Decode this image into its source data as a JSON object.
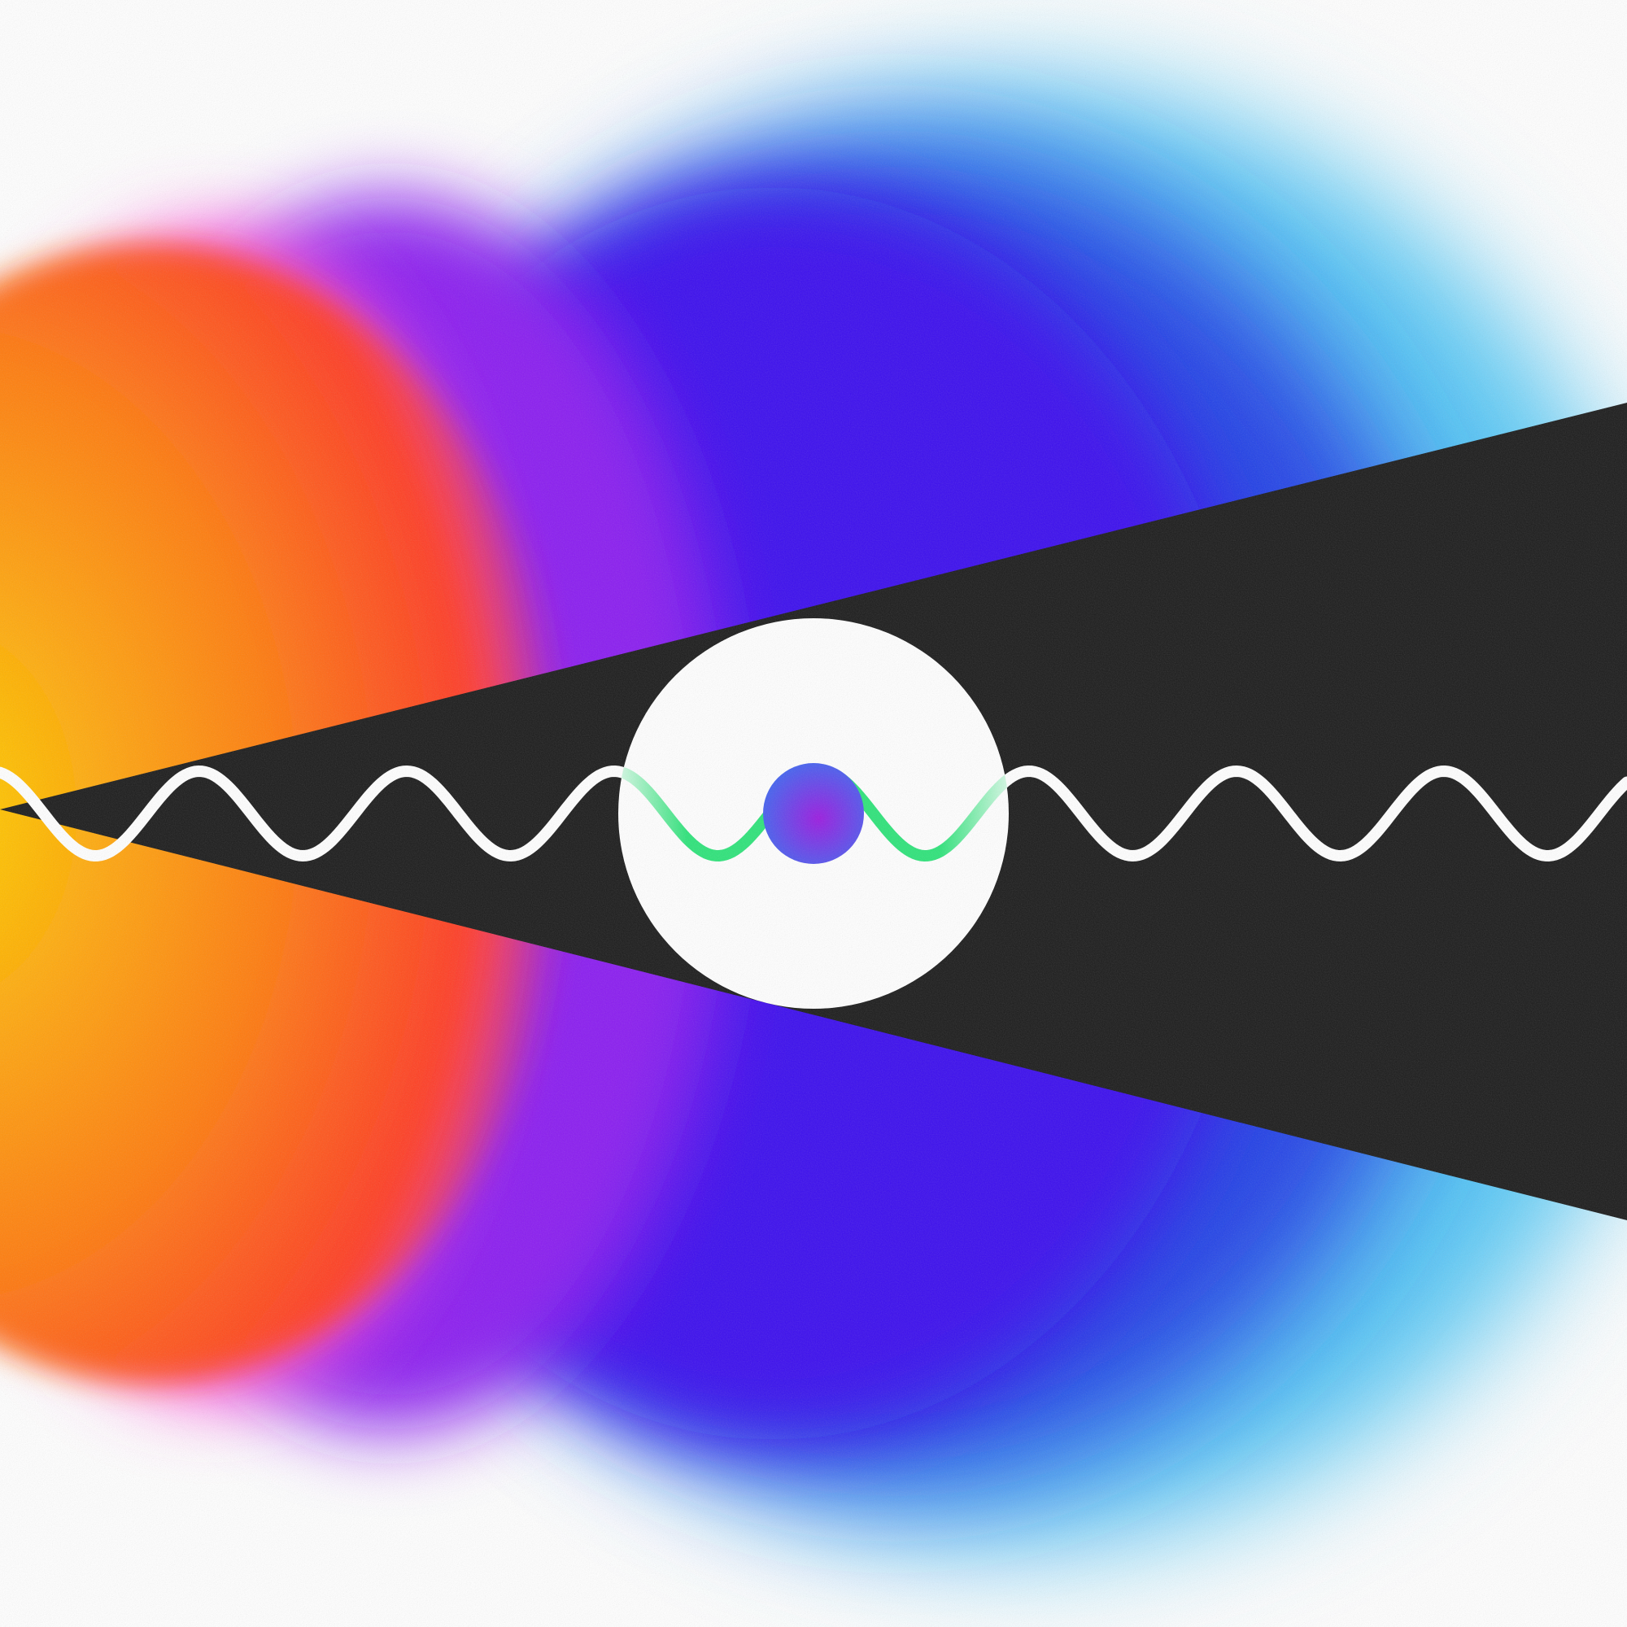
{
  "colors": {
    "background": "#ffffff",
    "glow_yellow": "#ffd200",
    "glow_orange": "#ff7a10",
    "glow_red": "#ff3a24",
    "glow_magenta": "#ff4fd8",
    "glow_violet": "#8a1cf0",
    "glow_indigo": "#3b08ee",
    "glow_blue": "#2440e6",
    "glow_cyan": "#54c8f5",
    "beam": "#1b1b1b",
    "disc": "#ffffff",
    "wave_white": "#ffffff",
    "wave_green": "#2ee37a",
    "particle_blue": "#3f66f0",
    "particle_purple": "#9a1ae0"
  },
  "icons": {
    "beam": "cone-beam-icon",
    "disc": "disc-icon",
    "particle": "particle-icon",
    "wave": "sine-wave-icon"
  }
}
